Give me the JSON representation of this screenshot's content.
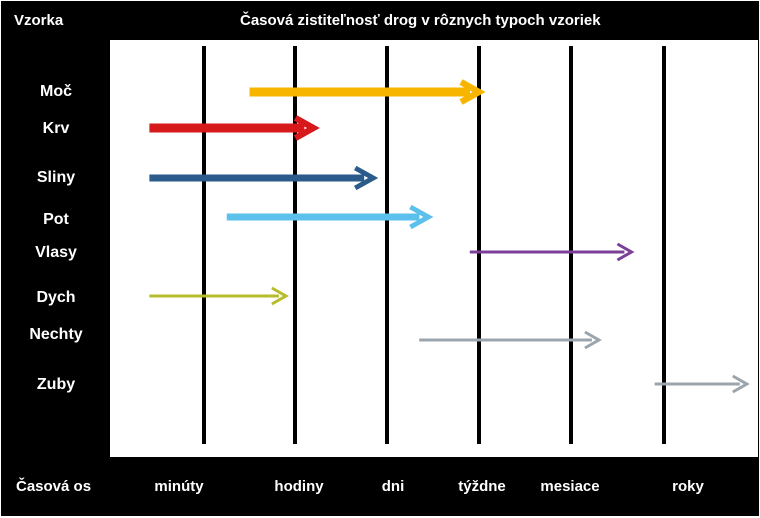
{
  "header": {
    "column_label": "Vzorka",
    "title": "Časová zistiteľnosť drog v rôznych typoch vzoriek"
  },
  "axis": {
    "label": "Časová os",
    "ticks": [
      "minúty",
      "hodiny",
      "dni",
      "týždne",
      "mesiace",
      "roky"
    ]
  },
  "samples": [
    {
      "name": "Moč",
      "start": 0.5,
      "end": 3.0,
      "color": "#f7b500"
    },
    {
      "name": "Krv",
      "start": -0.6,
      "end": 1.2,
      "color": "#d7191c"
    },
    {
      "name": "Sliny",
      "start": -0.6,
      "end": 1.85,
      "color": "#2b5b8a"
    },
    {
      "name": "Pot",
      "start": 0.25,
      "end": 2.45,
      "color": "#5bc0eb"
    },
    {
      "name": "Vlasy",
      "start": 2.9,
      "end": 4.65,
      "color": "#7b3f98"
    },
    {
      "name": "Dych",
      "start": -0.6,
      "end": 0.9,
      "color": "#b5bd2a"
    },
    {
      "name": "Nechty",
      "start": 2.35,
      "end": 4.3,
      "color": "#9aa5ad"
    },
    {
      "name": "Zuby",
      "start": 4.9,
      "end": 5.9,
      "color": "#9aa5ad"
    }
  ]
}
